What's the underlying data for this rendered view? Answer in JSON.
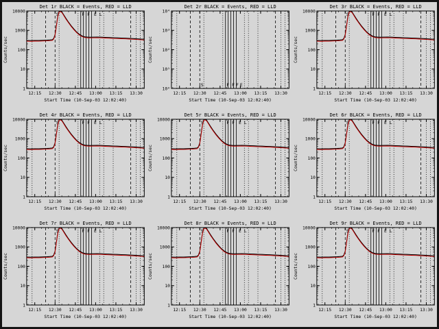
{
  "page": {
    "background": "#d6d6d6",
    "border_color": "#141414"
  },
  "colors": {
    "events": "#000000",
    "lld": "#cc0000",
    "axis": "#000000"
  },
  "axes": {
    "xlabel": "Start Time (10-Sep-03 12:02:40)",
    "ylabel": "Counts/sec",
    "x_range_minutes": [
      9,
      96
    ],
    "x_major_ticks": [
      {
        "m": 15,
        "label": "12:15"
      },
      {
        "m": 30,
        "label": "12:30"
      },
      {
        "m": 45,
        "label": "12:45"
      },
      {
        "m": 60,
        "label": "13:00"
      },
      {
        "m": 75,
        "label": "13:15"
      },
      {
        "m": 90,
        "label": "13:30"
      }
    ],
    "x_minor_step": 5,
    "y_log_decades": [
      0,
      4
    ],
    "y_tick_labels_default": [
      "1",
      "10",
      "100",
      "1000",
      "10000"
    ],
    "y_tick_labels_powers": [
      "10⁰",
      "10¹",
      "10²",
      "10³",
      "10⁴"
    ]
  },
  "profiles": {
    "flare_events": {
      "x": [
        9,
        12,
        15,
        18,
        21,
        24,
        26,
        28,
        29,
        30,
        31,
        32,
        33,
        34,
        35,
        36,
        38,
        40,
        42,
        44,
        46,
        48,
        50,
        52,
        55,
        58,
        61,
        64,
        67,
        70,
        73,
        76,
        79,
        82,
        85,
        88,
        91,
        94,
        96
      ],
      "y": [
        300,
        295,
        300,
        298,
        305,
        310,
        318,
        330,
        380,
        600,
        1800,
        5500,
        9500,
        10000,
        9000,
        7000,
        4200,
        2600,
        1700,
        1150,
        820,
        620,
        510,
        460,
        440,
        445,
        450,
        445,
        435,
        425,
        415,
        408,
        400,
        393,
        385,
        375,
        362,
        352,
        348
      ]
    },
    "lld_factor": 0.92
  },
  "vlines": [
    {
      "m": 13,
      "style": "dotted"
    },
    {
      "m": 23,
      "style": "dashed"
    },
    {
      "m": 30,
      "style": "dashed"
    },
    {
      "m": 33,
      "style": "dotted"
    },
    {
      "m": 47,
      "style": "dotted"
    },
    {
      "m": 49,
      "style": "solid"
    },
    {
      "m": 51,
      "style": "solid"
    },
    {
      "m": 53,
      "style": "solid"
    },
    {
      "m": 55,
      "style": "solid"
    },
    {
      "m": 57,
      "style": "solid"
    },
    {
      "m": 63,
      "style": "dotted"
    },
    {
      "m": 66,
      "style": "dotted"
    },
    {
      "m": 73,
      "style": "dotted"
    },
    {
      "m": 86,
      "style": "dashed"
    },
    {
      "m": 90,
      "style": "dotted"
    },
    {
      "m": 93,
      "style": "dotted"
    }
  ],
  "letters_top": [
    {
      "ch": "S",
      "m": 30
    },
    {
      "ch": "F",
      "m": 49
    },
    {
      "ch": "F",
      "m": 53
    },
    {
      "ch": "E",
      "m": 58
    },
    {
      "ch": "L",
      "m": 62
    }
  ],
  "letters_bottom": [
    {
      "ch": "S",
      "m": 30
    },
    {
      "ch": "F",
      "m": 49
    },
    {
      "ch": "F",
      "m": 53
    },
    {
      "ch": "F",
      "m": 56
    },
    {
      "ch": "E",
      "m": 59
    }
  ],
  "chart_data": [
    {
      "id": "det1r",
      "type": "line",
      "title": "Det 1r BLACK = Events, RED = LLD",
      "xlabel": "Start Time (10-Sep-03 12:02:40)",
      "ylabel": "Counts/sec",
      "ylim": [
        1,
        10000
      ],
      "y_labels": "default",
      "letters": "top",
      "has_data": true,
      "series": [
        {
          "name": "Events",
          "color": "#000000",
          "profile": "flare_events"
        },
        {
          "name": "LLD",
          "color": "#cc0000",
          "profile": "flare_lld"
        }
      ]
    },
    {
      "id": "det2r",
      "type": "line",
      "title": "Det 2r BLACK = Events, RED = LLD",
      "xlabel": "Start Time (10-Sep-03 12:02:40)",
      "ylabel": "Counts/sec",
      "ylim": [
        1,
        10000
      ],
      "y_labels": "powers",
      "letters": "bottom",
      "has_data": false,
      "series": []
    },
    {
      "id": "det3r",
      "type": "line",
      "title": "Det 3r BLACK = Events, RED = LLD",
      "xlabel": "Start Time (10-Sep-03 12:02:40)",
      "ylabel": "Counts/sec",
      "ylim": [
        1,
        10000
      ],
      "y_labels": "default",
      "letters": "top",
      "has_data": true,
      "series": [
        {
          "name": "Events",
          "color": "#000000",
          "profile": "flare_events"
        },
        {
          "name": "LLD",
          "color": "#cc0000",
          "profile": "flare_lld"
        }
      ]
    },
    {
      "id": "det4r",
      "type": "line",
      "title": "Det 4r BLACK = Events, RED = LLD",
      "xlabel": "Start Time (10-Sep-03 12:02:40)",
      "ylabel": "Counts/sec",
      "ylim": [
        1,
        10000
      ],
      "y_labels": "default",
      "letters": "top",
      "has_data": true,
      "series": [
        {
          "name": "Events",
          "color": "#000000",
          "profile": "flare_events"
        },
        {
          "name": "LLD",
          "color": "#cc0000",
          "profile": "flare_lld"
        }
      ]
    },
    {
      "id": "det5r",
      "type": "line",
      "title": "Det 5r BLACK = Events, RED = LLD",
      "xlabel": "Start Time (10-Sep-03 12:02:40)",
      "ylabel": "Counts/sec",
      "ylim": [
        1,
        10000
      ],
      "y_labels": "default",
      "letters": "top",
      "has_data": true,
      "series": [
        {
          "name": "Events",
          "color": "#000000",
          "profile": "flare_events"
        },
        {
          "name": "LLD",
          "color": "#cc0000",
          "profile": "flare_lld"
        }
      ]
    },
    {
      "id": "det6r",
      "type": "line",
      "title": "Det 6r BLACK = Events, RED = LLD",
      "xlabel": "Start Time (10-Sep-03 12:02:40)",
      "ylabel": "Counts/sec",
      "ylim": [
        1,
        10000
      ],
      "y_labels": "default",
      "letters": "top",
      "has_data": true,
      "series": [
        {
          "name": "Events",
          "color": "#000000",
          "profile": "flare_events"
        },
        {
          "name": "LLD",
          "color": "#cc0000",
          "profile": "flare_lld"
        }
      ]
    },
    {
      "id": "det7r",
      "type": "line",
      "title": "Det 7r BLACK = Events, RED = LLD",
      "xlabel": "Start Time (10-Sep-03 12:02:40)",
      "ylabel": "Counts/sec",
      "ylim": [
        1,
        10000
      ],
      "y_labels": "default",
      "letters": "top",
      "has_data": true,
      "series": [
        {
          "name": "Events",
          "color": "#000000",
          "profile": "flare_events"
        },
        {
          "name": "LLD",
          "color": "#cc0000",
          "profile": "flare_lld"
        }
      ]
    },
    {
      "id": "det8r",
      "type": "line",
      "title": "Det 8r BLACK = Events, RED = LLD",
      "xlabel": "Start Time (10-Sep-03 12:02:40)",
      "ylabel": "Counts/sec",
      "ylim": [
        1,
        10000
      ],
      "y_labels": "default",
      "letters": "top",
      "has_data": true,
      "series": [
        {
          "name": "Events",
          "color": "#000000",
          "profile": "flare_events"
        },
        {
          "name": "LLD",
          "color": "#cc0000",
          "profile": "flare_lld"
        }
      ]
    },
    {
      "id": "det9r",
      "type": "line",
      "title": "Det 9r BLACK = Events, RED = LLD",
      "xlabel": "Start Time (10-Sep-03 12:02:40)",
      "ylabel": "Counts/sec",
      "ylim": [
        1,
        10000
      ],
      "y_labels": "default",
      "letters": "top",
      "has_data": true,
      "series": [
        {
          "name": "Events",
          "color": "#000000",
          "profile": "flare_events"
        },
        {
          "name": "LLD",
          "color": "#cc0000",
          "profile": "flare_lld"
        }
      ]
    }
  ]
}
